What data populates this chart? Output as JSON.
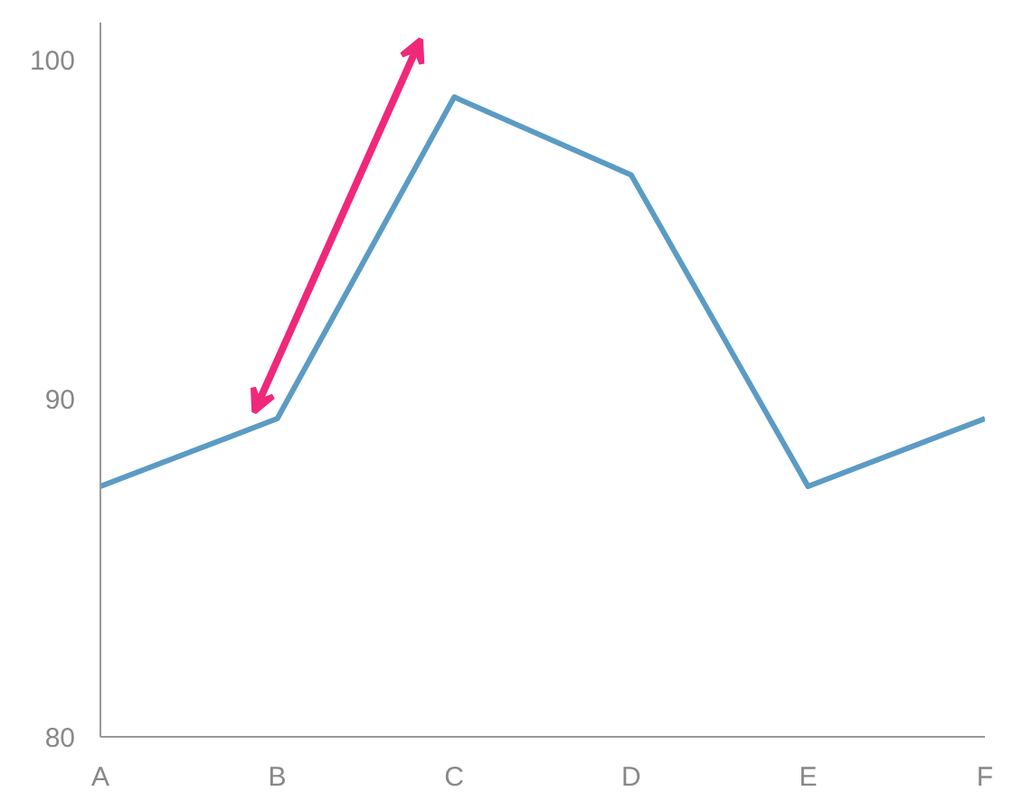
{
  "chart_data": {
    "type": "line",
    "categories": [
      "A",
      "B",
      "C",
      "D",
      "E",
      "F"
    ],
    "series": [
      {
        "color": "#5b9bc4",
        "values": [
          87.4,
          89.4,
          98.9,
          96.6,
          87.4,
          89.4
        ]
      }
    ],
    "ylim": [
      80,
      101.1
    ],
    "yticks": [
      80,
      90,
      100
    ],
    "grid": false,
    "marker": "none",
    "line_style": "solid"
  }
}
